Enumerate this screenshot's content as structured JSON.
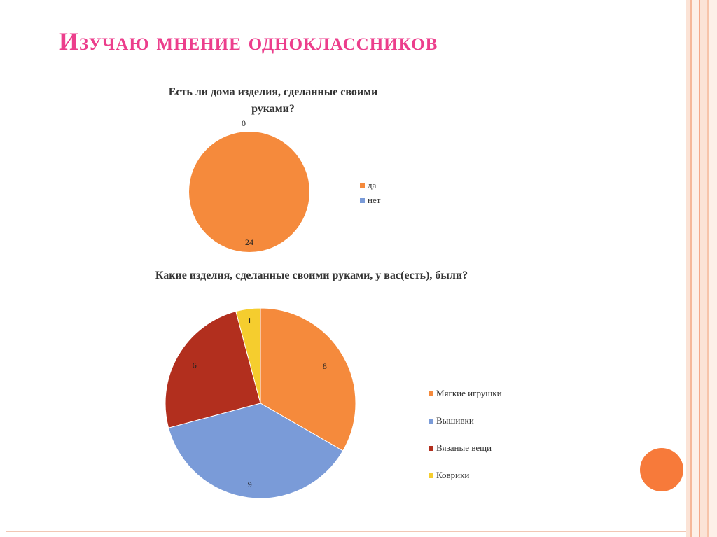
{
  "slide": {
    "title": "Изучаю мнение одноклассников"
  },
  "chart_data": [
    {
      "type": "pie",
      "title_lines": [
        "Есть ли дома изделия, сделанные своими",
        "руками?"
      ],
      "categories": [
        "да",
        "нет"
      ],
      "values": [
        24,
        0
      ],
      "colors": [
        "#f58a3c",
        "#7a9bd8"
      ],
      "legend": "right"
    },
    {
      "type": "pie",
      "title_lines": [
        "Какие изделия, сделанные своими руками, у вас(есть), были?"
      ],
      "categories": [
        "Мягкие игрушки",
        "Вышивки",
        "Вязаные вещи",
        "Коврики"
      ],
      "values": [
        8,
        9,
        6,
        1
      ],
      "colors": [
        "#f58a3c",
        "#7a9bd8",
        "#b22f1e",
        "#f5cd2e"
      ],
      "legend": "right"
    }
  ]
}
